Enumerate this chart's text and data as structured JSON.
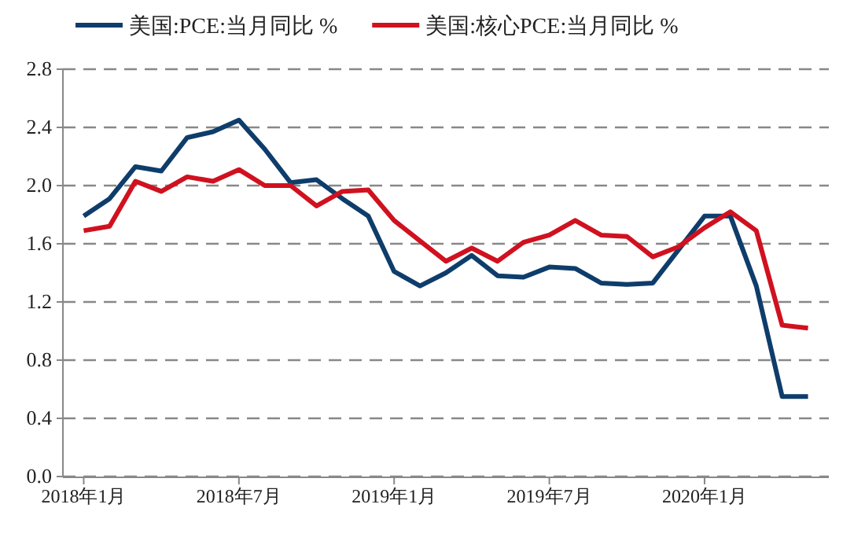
{
  "chart_data": {
    "type": "line",
    "categories": [
      "2018年1月",
      null,
      null,
      null,
      null,
      null,
      "2018年7月",
      null,
      null,
      null,
      null,
      null,
      "2019年1月",
      null,
      null,
      null,
      null,
      null,
      "2019年7月",
      null,
      null,
      null,
      null,
      null,
      "2020年1月",
      null,
      null,
      null,
      null
    ],
    "series": [
      {
        "name": "美国:PCE:当月同比 %",
        "color": "#0e3d6b",
        "values": [
          1.79,
          1.91,
          2.13,
          2.1,
          2.33,
          2.37,
          2.45,
          2.25,
          2.02,
          2.04,
          1.91,
          1.79,
          1.41,
          1.31,
          1.4,
          1.52,
          1.38,
          1.37,
          1.44,
          1.43,
          1.33,
          1.32,
          1.33,
          1.56,
          1.79,
          1.79,
          1.31,
          0.55,
          0.55
        ]
      },
      {
        "name": "美国:核心PCE:当月同比 %",
        "color": "#d0111f",
        "values": [
          1.69,
          1.72,
          2.03,
          1.96,
          2.06,
          2.03,
          2.11,
          2.0,
          2.0,
          1.86,
          1.96,
          1.97,
          1.76,
          1.62,
          1.48,
          1.57,
          1.48,
          1.61,
          1.66,
          1.76,
          1.66,
          1.65,
          1.51,
          1.58,
          1.71,
          1.82,
          1.69,
          1.04,
          1.02
        ]
      }
    ],
    "ylim": [
      0,
      2.8
    ],
    "yticks": [
      {
        "value": 0,
        "label": "0.0"
      },
      0.4,
      0.8,
      1.2,
      1.6,
      {
        "value": 2,
        "label": "2.0"
      },
      2.4,
      2.8
    ],
    "grid": "y",
    "legend": "top",
    "line_style": "solid",
    "marker": "none"
  }
}
